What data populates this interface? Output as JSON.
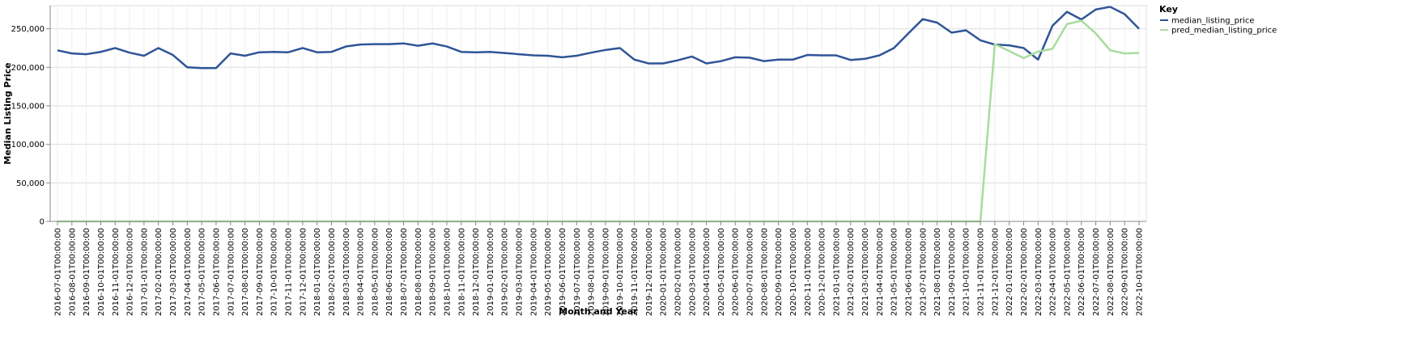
{
  "chart_data": {
    "type": "line",
    "title": "",
    "xlabel": "Month and Year",
    "ylabel": "Median Listing Price",
    "ylim": [
      0,
      280000
    ],
    "yticks": [
      0,
      50000,
      100000,
      150000,
      200000,
      250000
    ],
    "ytick_labels": [
      "0",
      "50,000",
      "100,000",
      "150,000",
      "200,000",
      "250,000"
    ],
    "grid": true,
    "legend_title": "Key",
    "legend_position": "top-right",
    "x": [
      "2016-07-01T00:00:00",
      "2016-08-01T00:00:00",
      "2016-09-01T00:00:00",
      "2016-10-01T00:00:00",
      "2016-11-01T00:00:00",
      "2016-12-01T00:00:00",
      "2017-01-01T00:00:00",
      "2017-02-01T00:00:00",
      "2017-03-01T00:00:00",
      "2017-04-01T00:00:00",
      "2017-05-01T00:00:00",
      "2017-06-01T00:00:00",
      "2017-07-01T00:00:00",
      "2017-08-01T00:00:00",
      "2017-09-01T00:00:00",
      "2017-10-01T00:00:00",
      "2017-11-01T00:00:00",
      "2017-12-01T00:00:00",
      "2018-01-01T00:00:00",
      "2018-02-01T00:00:00",
      "2018-03-01T00:00:00",
      "2018-04-01T00:00:00",
      "2018-05-01T00:00:00",
      "2018-06-01T00:00:00",
      "2018-07-01T00:00:00",
      "2018-08-01T00:00:00",
      "2018-09-01T00:00:00",
      "2018-10-01T00:00:00",
      "2018-11-01T00:00:00",
      "2018-12-01T00:00:00",
      "2019-01-01T00:00:00",
      "2019-02-01T00:00:00",
      "2019-03-01T00:00:00",
      "2019-04-01T00:00:00",
      "2019-05-01T00:00:00",
      "2019-06-01T00:00:00",
      "2019-07-01T00:00:00",
      "2019-08-01T00:00:00",
      "2019-09-01T00:00:00",
      "2019-10-01T00:00:00",
      "2019-11-01T00:00:00",
      "2019-12-01T00:00:00",
      "2020-01-01T00:00:00",
      "2020-02-01T00:00:00",
      "2020-03-01T00:00:00",
      "2020-04-01T00:00:00",
      "2020-05-01T00:00:00",
      "2020-06-01T00:00:00",
      "2020-07-01T00:00:00",
      "2020-08-01T00:00:00",
      "2020-09-01T00:00:00",
      "2020-10-01T00:00:00",
      "2020-11-01T00:00:00",
      "2020-12-01T00:00:00",
      "2021-01-01T00:00:00",
      "2021-02-01T00:00:00",
      "2021-03-01T00:00:00",
      "2021-04-01T00:00:00",
      "2021-05-01T00:00:00",
      "2021-06-01T00:00:00",
      "2021-07-01T00:00:00",
      "2021-08-01T00:00:00",
      "2021-09-01T00:00:00",
      "2021-10-01T00:00:00",
      "2021-11-01T00:00:00",
      "2021-12-01T00:00:00",
      "2022-01-01T00:00:00",
      "2022-02-01T00:00:00",
      "2022-03-01T00:00:00",
      "2022-04-01T00:00:00",
      "2022-05-01T00:00:00",
      "2022-06-01T00:00:00",
      "2022-07-01T00:00:00",
      "2022-08-01T00:00:00",
      "2022-09-01T00:00:00",
      "2022-10-01T00:00:00"
    ],
    "series": [
      {
        "name": "median_listing_price",
        "color": "#2f5597",
        "values": [
          222000,
          218000,
          217000,
          220000,
          225000,
          219000,
          215000,
          225000,
          216000,
          200000,
          199000,
          199000,
          218000,
          215000,
          219500,
          220000,
          219500,
          225000,
          219500,
          220000,
          227000,
          229500,
          230000,
          230000,
          231000,
          228000,
          231000,
          227000,
          220000,
          219500,
          220000,
          218500,
          217000,
          215500,
          215000,
          213000,
          215000,
          219000,
          222500,
          225000,
          210000,
          205000,
          205000,
          209000,
          214000,
          205000,
          208000,
          213000,
          212500,
          208000,
          210000,
          210000,
          216000,
          215500,
          215500,
          209500,
          211000,
          215500,
          225000,
          244000,
          262500,
          258000,
          245000,
          248000,
          235000,
          229500,
          228500,
          225000,
          210000,
          254000,
          272000,
          262000,
          275000,
          278500,
          269000,
          250000
        ]
      },
      {
        "name": "pred_median_listing_price",
        "color": "#a8dc9e",
        "values": [
          0,
          0,
          0,
          0,
          0,
          0,
          0,
          0,
          0,
          0,
          0,
          0,
          0,
          0,
          0,
          0,
          0,
          0,
          0,
          0,
          0,
          0,
          0,
          0,
          0,
          0,
          0,
          0,
          0,
          0,
          0,
          0,
          0,
          0,
          0,
          0,
          0,
          0,
          0,
          0,
          0,
          0,
          0,
          0,
          0,
          0,
          0,
          0,
          0,
          0,
          0,
          0,
          0,
          0,
          0,
          0,
          0,
          0,
          0,
          0,
          0,
          0,
          0,
          0,
          0,
          230000,
          221000,
          212000,
          220500,
          224000,
          256000,
          260500,
          244000,
          222000,
          218000,
          218500
        ]
      }
    ]
  }
}
